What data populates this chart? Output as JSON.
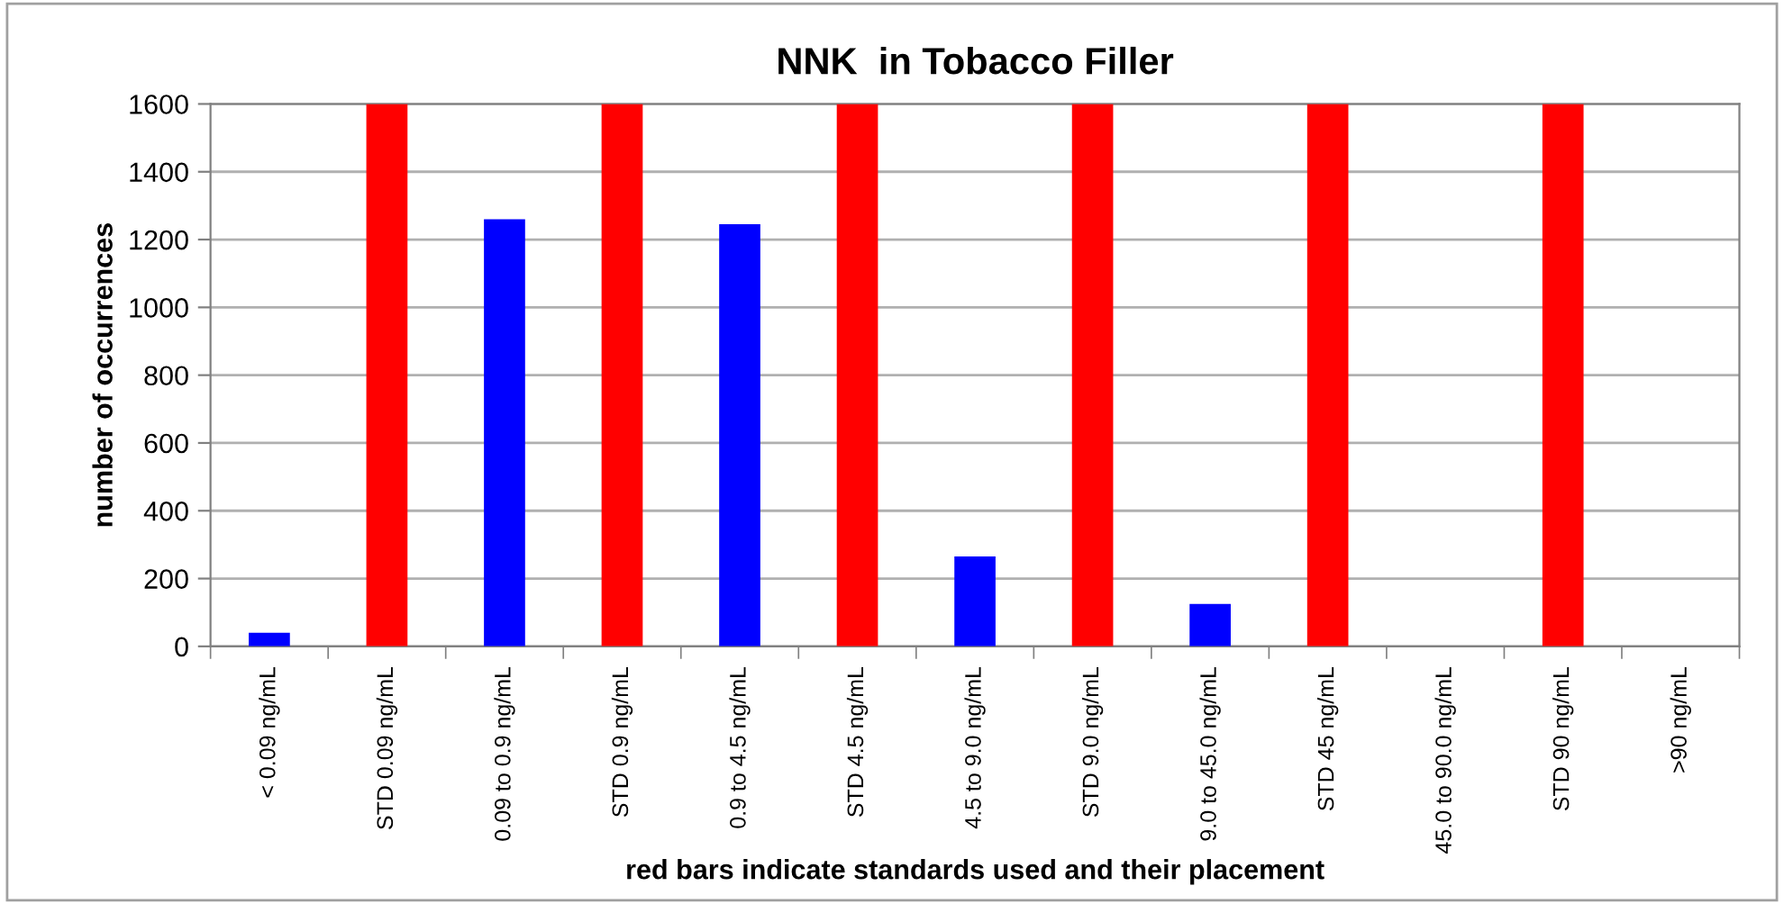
{
  "chart_data": {
    "type": "bar",
    "title": "NNK  in Tobacco Filler",
    "xlabel": "red bars indicate standards used and their placement",
    "ylabel": "number of occurrences",
    "categories": [
      "< 0.09 ng/mL",
      "STD 0.09 ng/mL",
      "0.09 to 0.9 ng/mL",
      "STD 0.9 ng/mL",
      "0.9 to 4.5 ng/mL",
      "STD 4.5 ng/mL",
      "4.5 to 9.0 ng/mL",
      "STD 9.0 ng/mL",
      "9.0 to 45.0 ng/mL",
      "STD 45 ng/mL",
      "45.0 to 90.0 ng/mL",
      "STD 90 ng/mL",
      ">90 ng/mL"
    ],
    "values": [
      40,
      1600,
      1260,
      1600,
      1245,
      1600,
      265,
      1600,
      125,
      1600,
      0,
      1600,
      0
    ],
    "colors": [
      "#0000ff",
      "#ff0000",
      "#0000ff",
      "#ff0000",
      "#0000ff",
      "#ff0000",
      "#0000ff",
      "#ff0000",
      "#0000ff",
      "#ff0000",
      "#0000ff",
      "#ff0000",
      "#0000ff"
    ],
    "ylim": [
      0,
      1600
    ],
    "yticks": [
      0,
      200,
      400,
      600,
      800,
      1000,
      1200,
      1400,
      1600
    ],
    "grid": "y"
  }
}
